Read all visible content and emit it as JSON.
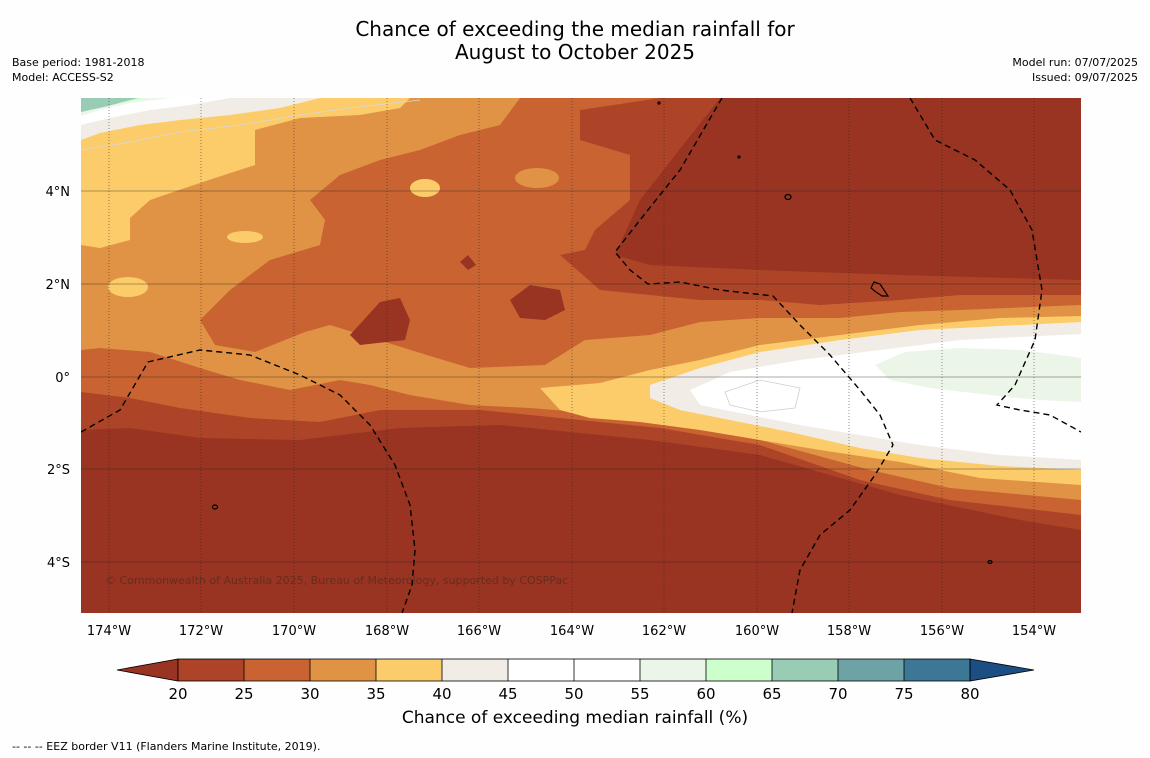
{
  "title_line1": "Chance of exceeding the median rainfall for",
  "title_line2": "August to October 2025",
  "base_period": "Base period: 1981-2018",
  "model": "Model: ACCESS-S2",
  "model_run": "Model run: 07/07/2025",
  "issued": "Issued: 09/07/2025",
  "credit": "© Commonwealth of Australia 2025, Bureau of Meteorology, supported by COSPPac",
  "footnote": "--  --  -- EEZ border V11 (Flanders Marine Institute, 2019).",
  "x_ticks": [
    "174°W",
    "172°W",
    "170°W",
    "168°W",
    "166°W",
    "164°W",
    "162°W",
    "160°W",
    "158°W",
    "156°W",
    "154°W"
  ],
  "y_ticks": [
    "4°N",
    "2°N",
    "0°",
    "2°S",
    "4°S"
  ],
  "colorbar": {
    "label": "Chance of exceeding median rainfall (%)",
    "ticks": [
      "20",
      "25",
      "30",
      "35",
      "40",
      "45",
      "50",
      "55",
      "60",
      "65",
      "70",
      "75",
      "80"
    ],
    "colors": {
      "below_20": "#993322",
      "20_25": "#ad4427",
      "25_30": "#c96432",
      "30_35": "#e09345",
      "35_40": "#fdcc6a",
      "40_45": "#f1ede6",
      "45_50": "#ffffff",
      "50_55": "#ffffff",
      "55_60": "#ebf5e8",
      "60_65": "#ccffcc",
      "65_70": "#99ccb5",
      "70_75": "#6ea3a6",
      "75_80": "#3d7796",
      "above_80": "#1b4e83"
    }
  }
}
